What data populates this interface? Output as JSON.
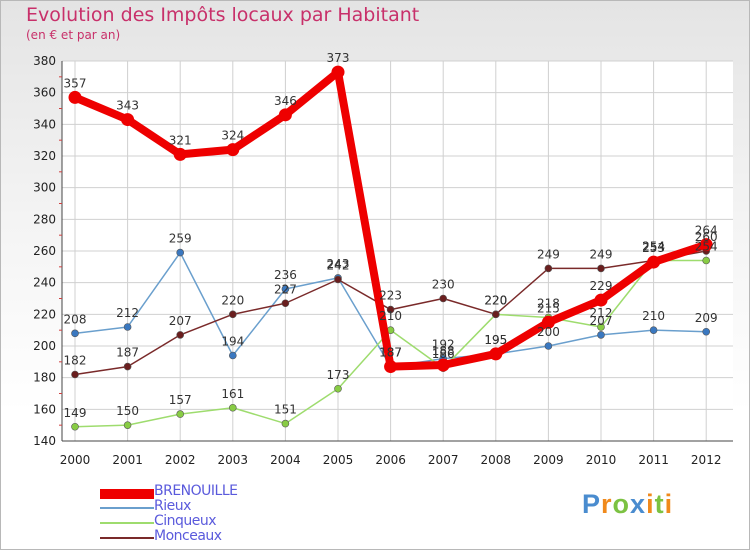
{
  "chart_data": {
    "type": "line",
    "title": "Evolution des Impôts locaux par Habitant",
    "subtitle": "(en € et par an)",
    "xlabel": "",
    "ylabel": "",
    "ylim": [
      140,
      380
    ],
    "yticks": [
      140,
      160,
      180,
      200,
      220,
      240,
      260,
      280,
      300,
      320,
      340,
      360,
      380
    ],
    "categories": [
      "2000",
      "2001",
      "2002",
      "2003",
      "2004",
      "2005",
      "2006",
      "2007",
      "2008",
      "2009",
      "2010",
      "2011",
      "2012"
    ],
    "grid": true,
    "legend_position": "bottom-left",
    "series": [
      {
        "name": "Rieux",
        "color": "#6a9fcd",
        "marker": "#3a78c0",
        "values": [
          208,
          212,
          259,
          194,
          236,
          243,
          187,
          192,
          195,
          200,
          207,
          210,
          209
        ]
      },
      {
        "name": "Cinqueux",
        "color": "#9edc6e",
        "marker": "#88cc44",
        "values": [
          149,
          150,
          157,
          161,
          151,
          173,
          210,
          186,
          220,
          218,
          212,
          254,
          254
        ]
      },
      {
        "name": "Monceaux",
        "color": "#7a2a2a",
        "marker": "#6a1e1e",
        "values": [
          182,
          187,
          207,
          220,
          227,
          242,
          223,
          230,
          220,
          249,
          249,
          254,
          260
        ]
      },
      {
        "name": "BRENOUILLE",
        "color": "#ee0000",
        "marker": "#ee0000",
        "values": [
          357,
          343,
          321,
          324,
          346,
          373,
          187,
          188,
          195,
          215,
          229,
          253,
          264
        ]
      }
    ]
  },
  "legend": {
    "items": [
      {
        "label": "BRENOUILLE",
        "color": "#ee0000"
      },
      {
        "label": "Rieux",
        "color": "#6a9fcd"
      },
      {
        "label": "Cinqueux",
        "color": "#9edc6e"
      },
      {
        "label": "Monceaux",
        "color": "#7a2a2a"
      }
    ],
    "text_color": "#5a5adc"
  },
  "logo": {
    "text": "Proxiti",
    "colors": [
      "#4a8ccf",
      "#f08a1c",
      "#7cc242",
      "#4a8ccf",
      "#f08a1c",
      "#7cc242",
      "#f08a1c"
    ]
  }
}
